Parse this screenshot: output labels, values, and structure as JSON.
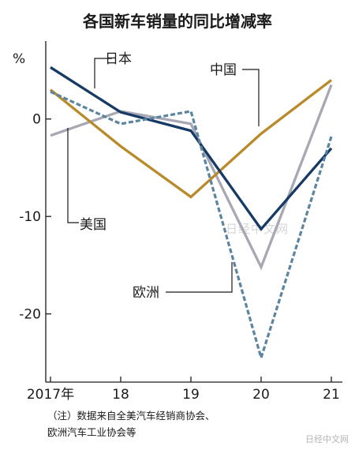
{
  "chart_data": {
    "type": "line",
    "title": "各国新车销量的同比增减率",
    "y_unit": "%",
    "x": [
      "2017年",
      "18",
      "19",
      "20",
      "21"
    ],
    "ylim": [
      -27,
      8
    ],
    "yticks": [
      0,
      -10,
      -20
    ],
    "ytick_labels": [
      "0",
      "-10",
      "-20"
    ],
    "grid": false,
    "series": [
      {
        "name": "日本",
        "values": [
          5.3,
          0.7,
          -1.2,
          -11.3,
          -3.0
        ],
        "color": "#163a66",
        "dash": false
      },
      {
        "name": "中国",
        "values": [
          3.0,
          -2.8,
          -8.0,
          -1.5,
          4.0
        ],
        "color": "#b88a2a",
        "dash": false
      },
      {
        "name": "美国",
        "values": [
          -1.7,
          0.8,
          -0.5,
          -15.2,
          3.5
        ],
        "color": "#a8a8b4",
        "dash": false
      },
      {
        "name": "欧洲",
        "values": [
          2.8,
          -0.5,
          0.8,
          -24.5,
          -1.8
        ],
        "color": "#5a84a0",
        "dash": true
      }
    ],
    "annotations": [
      {
        "text": "日本",
        "series": "日本"
      },
      {
        "text": "中国",
        "series": "中国"
      },
      {
        "text": "美国",
        "series": "美国"
      },
      {
        "text": "欧洲",
        "series": "欧洲"
      }
    ]
  },
  "watermark": "日经中文网",
  "note_line1": "（注）数据来自全美汽车经销商协会、",
  "note_line2": "欧洲汽车工业协会等",
  "watermark_bottom": "日经中文网"
}
